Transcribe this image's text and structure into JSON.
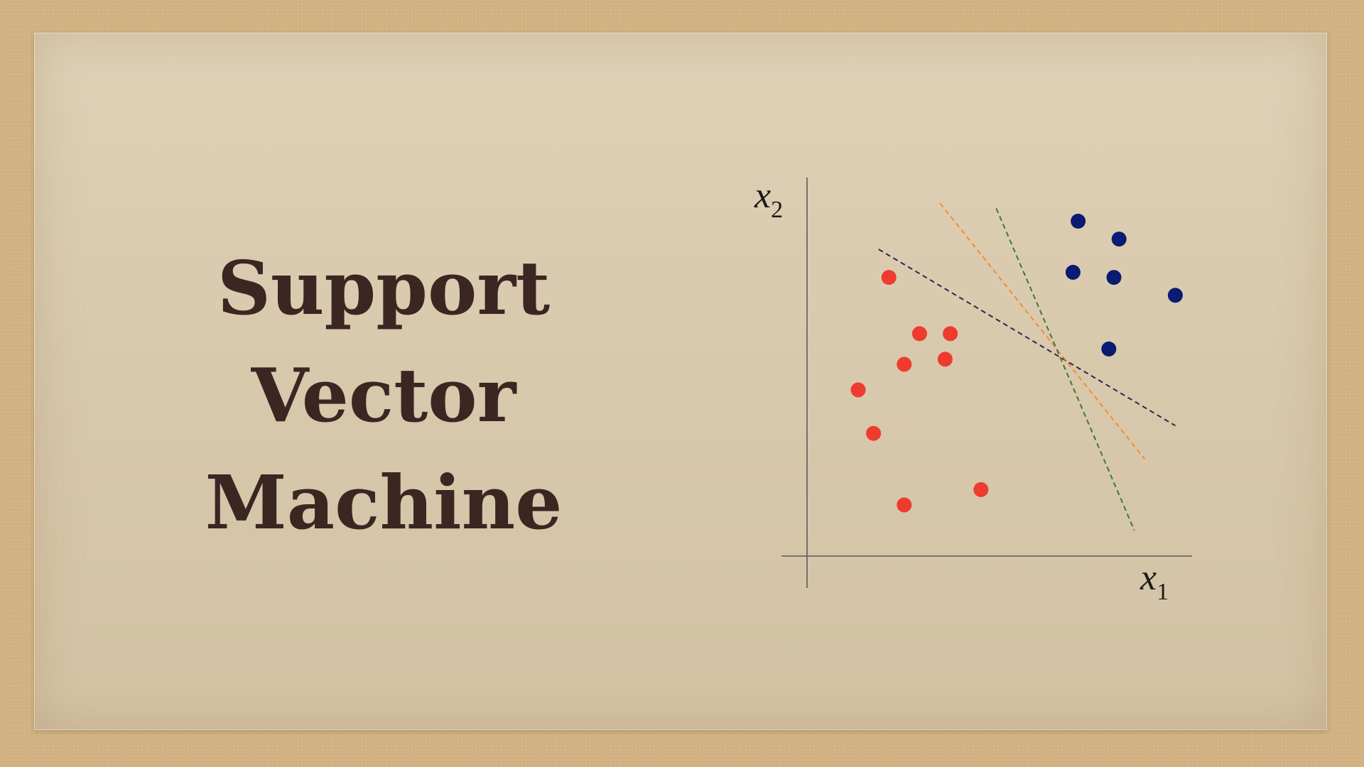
{
  "slide": {
    "title_lines": [
      "Support",
      "Vector",
      "Machine"
    ]
  },
  "diagram": {
    "x_axis_label": "x",
    "x_axis_subscript": "1",
    "y_axis_label": "x",
    "y_axis_subscript": "2",
    "classes": {
      "red": {
        "color": "#ee3b2e",
        "points": [
          [
            1.0,
            3.25
          ],
          [
            1.6,
            5.45
          ],
          [
            1.3,
            2.4
          ],
          [
            1.9,
            1.0
          ],
          [
            1.9,
            3.75
          ],
          [
            2.2,
            4.35
          ],
          [
            2.8,
            4.35
          ],
          [
            2.7,
            3.85
          ],
          [
            3.4,
            1.3
          ]
        ]
      },
      "blue": {
        "color": "#0b1a72",
        "points": [
          [
            5.3,
            6.55
          ],
          [
            6.1,
            6.2
          ],
          [
            5.2,
            5.55
          ],
          [
            6.0,
            5.45
          ],
          [
            7.2,
            5.1
          ],
          [
            5.9,
            4.05
          ]
        ]
      }
    },
    "separators": [
      {
        "color": "#2c2750",
        "from": [
          1.4,
          6.0
        ],
        "to": [
          7.2,
          2.55
        ]
      },
      {
        "color": "#ef8c35",
        "from": [
          2.6,
          6.9
        ],
        "to": [
          6.6,
          1.9
        ]
      },
      {
        "color": "#3a7a32",
        "from": [
          3.7,
          6.8
        ],
        "to": [
          6.4,
          0.5
        ]
      }
    ]
  }
}
